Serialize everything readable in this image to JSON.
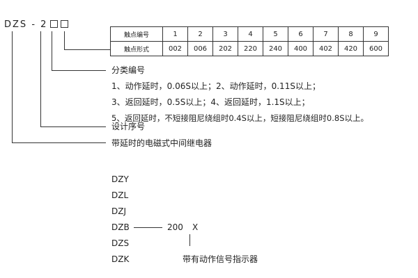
{
  "model": {
    "prefix": "DZS",
    "dash": "-",
    "series": "2"
  },
  "table": {
    "row1_header": "触点编号",
    "row2_header": "触点形式",
    "numbers": [
      "1",
      "2",
      "3",
      "4",
      "5",
      "6",
      "7",
      "8",
      "9"
    ],
    "forms": [
      "002",
      "006",
      "202",
      "220",
      "240",
      "400",
      "402",
      "420",
      "600"
    ]
  },
  "labels": {
    "classification": "分类编号",
    "class_lines": [
      "1、动作延时，0.06S以上；2、动作延时，0.11S以上；",
      "3、返回延时，0.5S以上；4、返回延时，1.1S以上；",
      "5、返回延时，不短接阻尼绕组时0.4S以上，短接阻尼绕组时0.8S以上。"
    ],
    "design_no": "设计序号",
    "type_desc": "带延时的电磁式中间继电器"
  },
  "variants": {
    "items": [
      "DZY",
      "DZL",
      "DZJ",
      "DZB",
      "DZS",
      "DZK"
    ],
    "code": "200",
    "suffix": "X",
    "suffix_desc": "带有动作信号指示器"
  }
}
